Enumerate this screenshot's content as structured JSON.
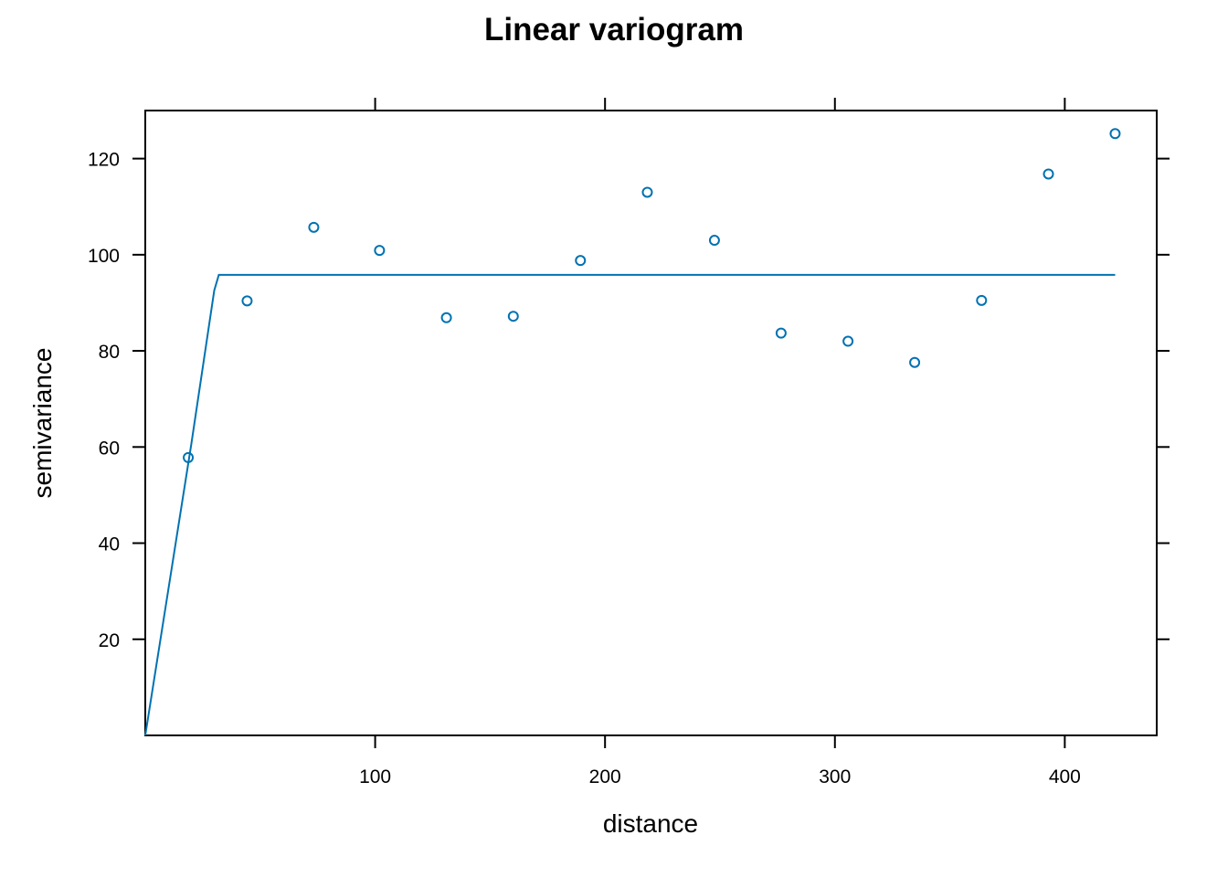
{
  "chart_data": {
    "type": "scatter",
    "title": "Linear variogram",
    "xlabel": "distance",
    "ylabel": "semivariance",
    "xlim": [
      0,
      440
    ],
    "ylim": [
      0,
      130
    ],
    "x_ticks": [
      100,
      200,
      300,
      400
    ],
    "y_ticks": [
      20,
      40,
      60,
      80,
      100,
      120
    ],
    "grid": false,
    "color": "#0072B2",
    "series": [
      {
        "type": "scatter",
        "x": [
          18.7,
          44.3,
          73.3,
          101.9,
          131.0,
          160.1,
          189.3,
          218.4,
          247.6,
          276.6,
          305.7,
          334.7,
          363.8,
          392.9,
          421.9
        ],
        "y": [
          57.8,
          90.4,
          105.7,
          100.9,
          86.9,
          87.2,
          98.8,
          113.0,
          103.0,
          83.7,
          82.0,
          77.6,
          90.5,
          116.8,
          125.2
        ]
      },
      {
        "type": "line",
        "x": [
          0,
          10,
          20,
          30,
          32,
          421.9
        ],
        "y": [
          0,
          30.3,
          60.5,
          92.6,
          95.8,
          95.8
        ]
      }
    ]
  }
}
